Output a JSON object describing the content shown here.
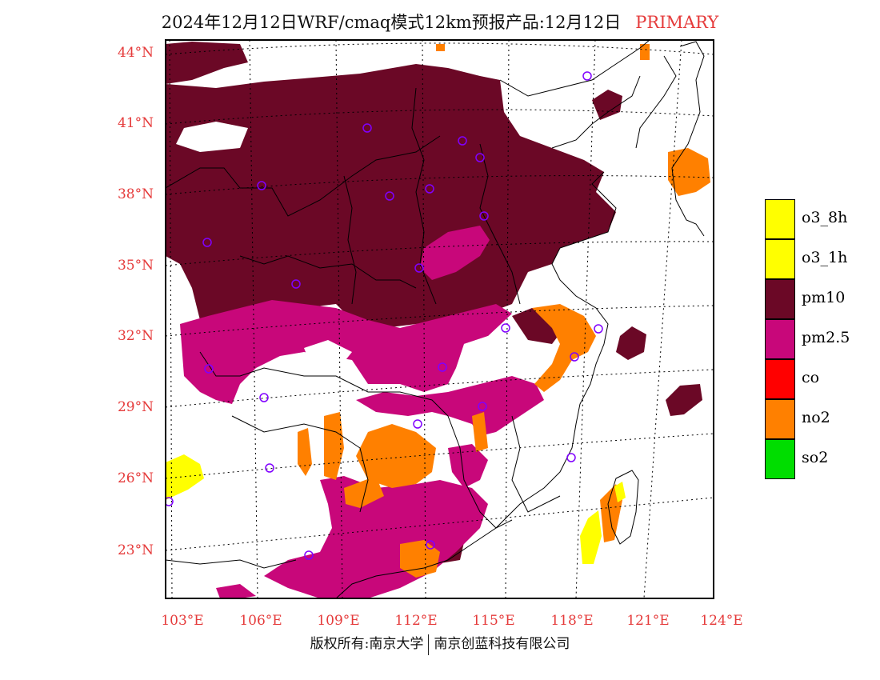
{
  "title": {
    "main": "2024年12月12日WRF/cmaq模式12km预报产品:12月12日",
    "tag": "PRIMARY"
  },
  "axes": {
    "lat_labels": [
      "44°N",
      "41°N",
      "38°N",
      "35°N",
      "32°N",
      "29°N",
      "26°N",
      "23°N"
    ],
    "lon_labels": [
      "103°E",
      "106°E",
      "109°E",
      "112°E",
      "115°E",
      "118°E",
      "121°E",
      "124°E"
    ]
  },
  "legend": {
    "items": [
      {
        "label": "o3_8h",
        "color": "#ffff00"
      },
      {
        "label": "o3_1h",
        "color": "#ffff00"
      },
      {
        "label": "pm10",
        "color": "#6b0826"
      },
      {
        "label": "pm2.5",
        "color": "#c8077a"
      },
      {
        "label": "co",
        "color": "#ff0000"
      },
      {
        "label": "no2",
        "color": "#ff8000"
      },
      {
        "label": "so2",
        "color": "#00dd00"
      }
    ]
  },
  "colors": {
    "pm10": "#6b0826",
    "pm25": "#c8077a",
    "no2": "#ff8000",
    "o3": "#ffff00",
    "station": "#8000ff",
    "label": "#e53b3b"
  },
  "footer": {
    "left": "版权所有:南京大学",
    "right": "南京创蓝科技有限公司"
  }
}
